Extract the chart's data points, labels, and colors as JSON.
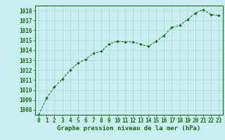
{
  "x": [
    0,
    1,
    2,
    3,
    4,
    5,
    6,
    7,
    8,
    9,
    10,
    11,
    12,
    13,
    14,
    15,
    16,
    17,
    18,
    19,
    20,
    21,
    22,
    23
  ],
  "y": [
    1007.5,
    1009.2,
    1010.3,
    1011.1,
    1012.0,
    1012.7,
    1013.1,
    1013.7,
    1013.9,
    1014.65,
    1014.9,
    1014.85,
    1014.85,
    1014.6,
    1014.4,
    1014.9,
    1015.5,
    1016.3,
    1016.5,
    1017.1,
    1017.75,
    1018.1,
    1017.6,
    1017.5
  ],
  "line_color": "#1a6b1a",
  "marker_color": "#1a6b1a",
  "bg_color": "#c8eef0",
  "grid_color": "#b0d8d8",
  "xlabel": "Graphe pression niveau de la mer (hPa)",
  "ylabel_ticks": [
    1008,
    1009,
    1010,
    1011,
    1012,
    1013,
    1014,
    1015,
    1016,
    1017,
    1018
  ],
  "ylim": [
    1007.5,
    1018.5
  ],
  "xlim": [
    -0.5,
    23.5
  ],
  "tick_label_color": "#1a6b1a",
  "xlabel_color": "#1a6b1a",
  "xlabel_fontsize": 6.5,
  "tick_fontsize": 5.5
}
